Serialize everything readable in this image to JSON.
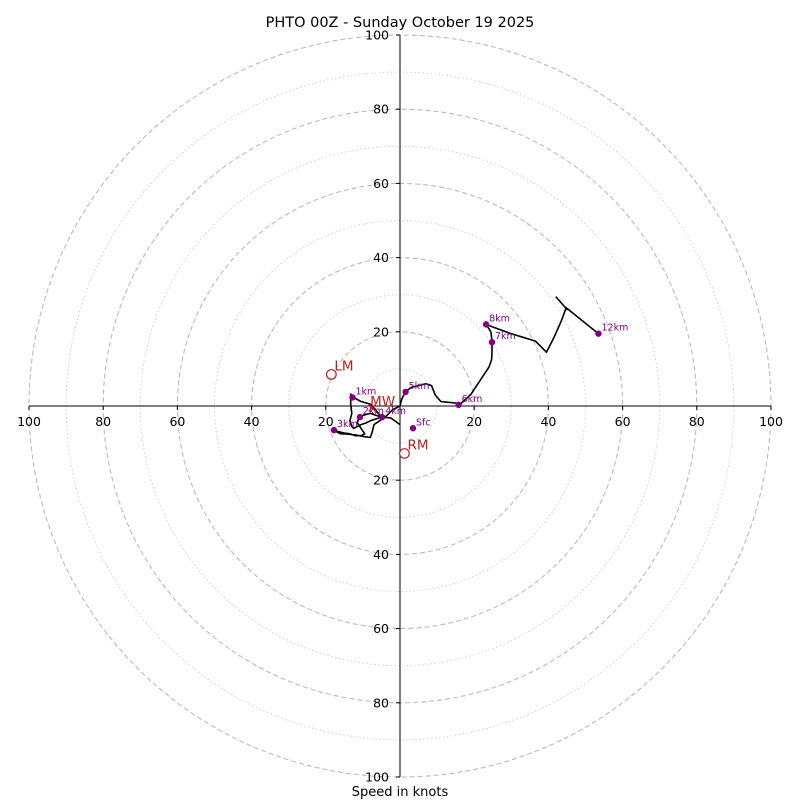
{
  "chart_data": {
    "type": "hodograph",
    "title": "PHTO 00Z - Sunday October 19 2025",
    "xlabel": "Speed in knots",
    "ylabel": "",
    "range": [
      -100,
      100
    ],
    "ring_major": [
      20,
      40,
      60,
      80,
      100
    ],
    "ring_minor": [
      10,
      30,
      50,
      70,
      90
    ],
    "x_ticks": [
      "100",
      "80",
      "60",
      "40",
      "20",
      "20",
      "40",
      "60",
      "80",
      "100"
    ],
    "y_ticks": [
      "100",
      "80",
      "60",
      "40",
      "20",
      "20",
      "40",
      "60",
      "80",
      "100"
    ],
    "grid": true,
    "colors": {
      "trace": "#000000",
      "height_marker": "#800080",
      "motion": "#b22222",
      "ring": "#bbbbbb",
      "axis": "#000000"
    },
    "series": [
      {
        "points": [
          [
            0,
            -5
          ],
          [
            -2.5,
            -3.2
          ],
          [
            -5,
            -3
          ],
          [
            -6.5,
            -3.5
          ],
          [
            -8,
            -4
          ],
          [
            -9,
            -4.5
          ],
          [
            -10.5,
            -5
          ],
          [
            -12.5,
            -6
          ],
          [
            -13,
            -5.5
          ],
          [
            -13.5,
            -4
          ],
          [
            -13,
            -2
          ],
          [
            -13.3,
            0.5
          ],
          [
            -13.3,
            3.2
          ],
          [
            -12.5,
            2.3
          ],
          [
            -10.5,
            1.2
          ],
          [
            -8,
            0.5
          ],
          [
            -7,
            -0.5
          ],
          [
            -6,
            -1.8
          ],
          [
            -5,
            -3
          ],
          [
            -8,
            -2
          ],
          [
            -10,
            -2.5
          ],
          [
            -11,
            -3
          ],
          [
            -11.5,
            -4.5
          ],
          [
            -10.5,
            -6
          ],
          [
            -9.5,
            -7.5
          ],
          [
            -10.5,
            -8
          ],
          [
            -12,
            -8
          ],
          [
            -13.5,
            -7.5
          ],
          [
            -15,
            -7.3
          ],
          [
            -18,
            -6.5
          ],
          [
            -16,
            -7.5
          ],
          [
            -15,
            -7.5
          ],
          [
            -12,
            -7.8
          ],
          [
            -10,
            -8.2
          ],
          [
            -8,
            -8.5
          ],
          [
            -7.5,
            -7
          ],
          [
            -7,
            -5
          ],
          [
            -5.5,
            -4
          ],
          [
            -4,
            -3
          ],
          [
            -3,
            -2
          ],
          [
            -2,
            -1
          ],
          [
            0,
            0
          ],
          [
            0.5,
            2
          ],
          [
            1.5,
            3.8
          ],
          [
            3,
            5
          ],
          [
            5,
            5.5
          ],
          [
            7,
            6
          ],
          [
            8.5,
            5.5
          ],
          [
            9.5,
            3
          ],
          [
            11,
            1.2
          ],
          [
            13,
            1
          ],
          [
            15,
            0.8
          ],
          [
            16,
            0.3
          ],
          [
            19,
            3
          ],
          [
            22,
            7.5
          ],
          [
            24,
            10.5
          ],
          [
            24.7,
            12.5
          ],
          [
            24.8,
            14.5
          ],
          [
            24.8,
            17.5
          ],
          [
            24.5,
            20
          ],
          [
            23.2,
            22
          ],
          [
            25,
            21.3
          ],
          [
            30,
            19.5
          ],
          [
            36.5,
            17.5
          ],
          [
            39.5,
            14.5
          ],
          [
            41.5,
            18.5
          ],
          [
            43.5,
            23
          ],
          [
            44.8,
            26.5
          ],
          [
            53.5,
            19.5
          ],
          [
            44.8,
            26.5
          ],
          [
            45,
            26
          ],
          [
            42,
            29.5
          ]
        ]
      }
    ],
    "height_markers": [
      {
        "label": "Sfc",
        "u": 3.5,
        "v": -6,
        "dx": 3,
        "dy": -3
      },
      {
        "label": "1km",
        "u": -12.8,
        "v": 2.3,
        "dx": 3,
        "dy": -3
      },
      {
        "label": "2km",
        "u": -10.8,
        "v": -3.0,
        "dx": 3,
        "dy": -3
      },
      {
        "label": "3km",
        "u": -17.8,
        "v": -6.5,
        "dx": 3,
        "dy": -3
      },
      {
        "label": "4km",
        "u": -4.8,
        "v": -3.0,
        "dx": 3,
        "dy": -3
      },
      {
        "label": "5km",
        "u": 1.5,
        "v": 3.8,
        "dx": 3,
        "dy": -3
      },
      {
        "label": "6km",
        "u": 15.8,
        "v": 0.3,
        "dx": 3,
        "dy": -3
      },
      {
        "label": "7km",
        "u": 24.8,
        "v": 17.2,
        "dx": 3,
        "dy": -3
      },
      {
        "label": "8km",
        "u": 23.2,
        "v": 22,
        "dx": 3,
        "dy": -3
      },
      {
        "label": "12km",
        "u": 53.5,
        "v": 19.5,
        "dx": 3,
        "dy": -3
      }
    ],
    "storm_motion": [
      {
        "label": "LM",
        "u": -18.5,
        "v": 8.5,
        "dx": 3,
        "dy": -4
      },
      {
        "label": "RM",
        "u": 1.2,
        "v": -12.8,
        "dx": 3,
        "dy": -4
      },
      {
        "label": "MW",
        "u": -7.5,
        "v": -0.5,
        "dx": -2,
        "dy": -2
      }
    ]
  }
}
